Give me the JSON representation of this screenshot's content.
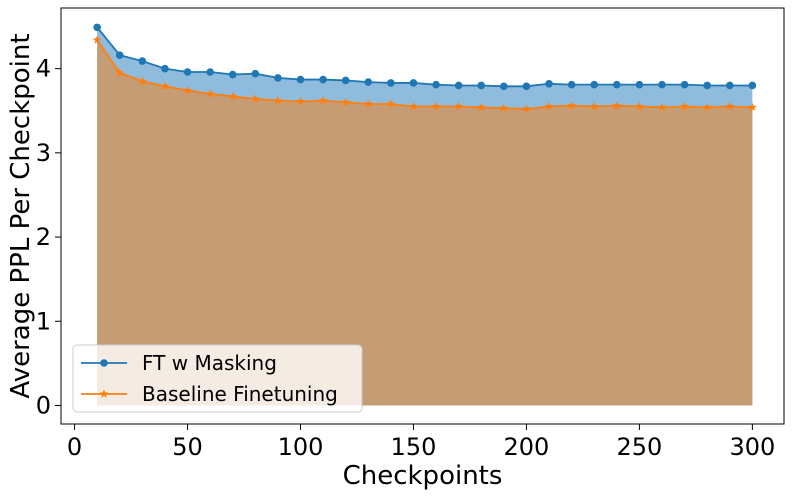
{
  "chart_data": {
    "type": "area",
    "xlabel": "Checkpoints",
    "ylabel": "Average PPL Per Checkpoint",
    "xlim": [
      -6,
      314
    ],
    "ylim": [
      -0.22,
      4.72
    ],
    "xticks": [
      0,
      50,
      100,
      150,
      200,
      250,
      300
    ],
    "yticks": [
      0,
      1,
      2,
      3,
      4
    ],
    "grid": false,
    "legend_position": "bottom-left",
    "x": [
      10,
      20,
      30,
      40,
      50,
      60,
      70,
      80,
      90,
      100,
      110,
      120,
      130,
      140,
      150,
      160,
      170,
      180,
      190,
      200,
      210,
      220,
      230,
      240,
      250,
      260,
      270,
      280,
      290,
      300
    ],
    "series": [
      {
        "name": "FT w Masking",
        "color": "#1f77b4",
        "fill": "#8fbbdc",
        "marker": "circle",
        "values": [
          4.49,
          4.16,
          4.09,
          4.0,
          3.96,
          3.96,
          3.93,
          3.94,
          3.89,
          3.87,
          3.87,
          3.86,
          3.84,
          3.83,
          3.83,
          3.81,
          3.8,
          3.8,
          3.79,
          3.79,
          3.82,
          3.81,
          3.81,
          3.81,
          3.81,
          3.81,
          3.81,
          3.8,
          3.8,
          3.8
        ]
      },
      {
        "name": "Baseline Finetuning",
        "color": "#ff7f0e",
        "fill": "#c69c74",
        "marker": "star",
        "values": [
          4.34,
          3.95,
          3.85,
          3.79,
          3.74,
          3.7,
          3.67,
          3.64,
          3.62,
          3.61,
          3.62,
          3.6,
          3.58,
          3.58,
          3.55,
          3.55,
          3.55,
          3.54,
          3.53,
          3.52,
          3.55,
          3.56,
          3.55,
          3.56,
          3.55,
          3.54,
          3.55,
          3.54,
          3.55,
          3.54
        ]
      }
    ]
  }
}
